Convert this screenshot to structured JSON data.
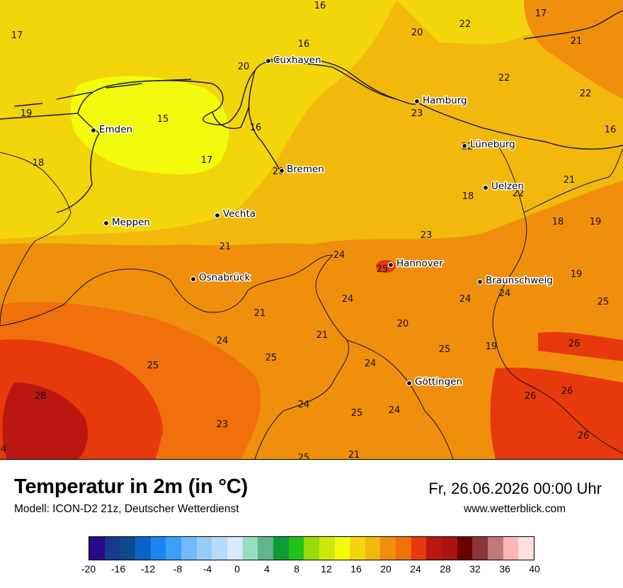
{
  "header": {
    "title": "Temperatur in 2m (in °C)",
    "subtitle": "Modell: ICON-D2 21z, Deutscher Wetterdienst",
    "datetime": "Fr, 26.06.2026 00:00 Uhr",
    "website": "www.wetterblick.com"
  },
  "cities": [
    {
      "name": "Cuxhaven"
    },
    {
      "name": "Hamburg"
    },
    {
      "name": "Emden"
    },
    {
      "name": "Lüneburg"
    },
    {
      "name": "Bremen"
    },
    {
      "name": "Uelzen"
    },
    {
      "name": "Vechta"
    },
    {
      "name": "Meppen"
    },
    {
      "name": "Hannover"
    },
    {
      "name": "Osnabrück"
    },
    {
      "name": "Braunschweig"
    },
    {
      "name": "Göttingen"
    }
  ],
  "temperature_labels": [
    "16",
    "17",
    "20",
    "22",
    "17",
    "21",
    "16",
    "20",
    "22",
    "22",
    "19",
    "15",
    "16",
    "23",
    "16",
    "17",
    "18",
    "22",
    "20",
    "21",
    "22",
    "18",
    "23",
    "18",
    "19",
    "21",
    "24",
    "25",
    "19",
    "21",
    "24",
    "24",
    "25",
    "20",
    "24",
    "21",
    "24",
    "25",
    "25",
    "19",
    "26",
    "24",
    "28",
    "26",
    "26",
    "24",
    "25",
    "24",
    "23",
    "26",
    "4",
    "25",
    "21"
  ],
  "legend": {
    "colors": [
      "#2a0a8a",
      "#143b8c",
      "#0f4a8f",
      "#0a64c8",
      "#1b87ee",
      "#3ba0f5",
      "#73b9fb",
      "#96cbfb",
      "#b7dbfd",
      "#d7eafe",
      "#93dfc2",
      "#61b48d",
      "#0c9c37",
      "#22c21a",
      "#98dc0a",
      "#cde90c",
      "#f2fb0b",
      "#f3d50b",
      "#f2b80c",
      "#f08f0c",
      "#f0700c",
      "#e7390c",
      "#bb1711",
      "#ac1313",
      "#6d0000",
      "#8b3636",
      "#c17878",
      "#fdb6b6",
      "#ffe0e0"
    ],
    "ticks": [
      "-20",
      "-16",
      "-12",
      "-8",
      "-4",
      "0",
      "4",
      "8",
      "12",
      "16",
      "20",
      "24",
      "28",
      "32",
      "36",
      "40"
    ]
  }
}
